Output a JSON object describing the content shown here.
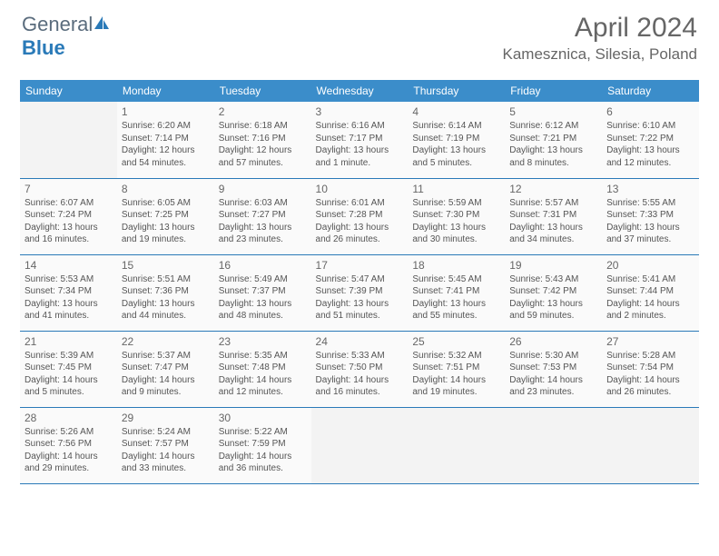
{
  "brand": {
    "part1": "General",
    "part2": "Blue"
  },
  "title": "April 2024",
  "location": "Kamesznica, Silesia, Poland",
  "colors": {
    "header_bg": "#3b8dca",
    "header_text": "#ffffff",
    "cell_border": "#2a7ab8",
    "cell_bg": "#fafafa",
    "empty_bg": "#f3f3f3",
    "text": "#555555",
    "title_color": "#666666"
  },
  "weekdays": [
    "Sunday",
    "Monday",
    "Tuesday",
    "Wednesday",
    "Thursday",
    "Friday",
    "Saturday"
  ],
  "weeks": [
    [
      null,
      {
        "n": "1",
        "sr": "Sunrise: 6:20 AM",
        "ss": "Sunset: 7:14 PM",
        "d1": "Daylight: 12 hours",
        "d2": "and 54 minutes."
      },
      {
        "n": "2",
        "sr": "Sunrise: 6:18 AM",
        "ss": "Sunset: 7:16 PM",
        "d1": "Daylight: 12 hours",
        "d2": "and 57 minutes."
      },
      {
        "n": "3",
        "sr": "Sunrise: 6:16 AM",
        "ss": "Sunset: 7:17 PM",
        "d1": "Daylight: 13 hours",
        "d2": "and 1 minute."
      },
      {
        "n": "4",
        "sr": "Sunrise: 6:14 AM",
        "ss": "Sunset: 7:19 PM",
        "d1": "Daylight: 13 hours",
        "d2": "and 5 minutes."
      },
      {
        "n": "5",
        "sr": "Sunrise: 6:12 AM",
        "ss": "Sunset: 7:21 PM",
        "d1": "Daylight: 13 hours",
        "d2": "and 8 minutes."
      },
      {
        "n": "6",
        "sr": "Sunrise: 6:10 AM",
        "ss": "Sunset: 7:22 PM",
        "d1": "Daylight: 13 hours",
        "d2": "and 12 minutes."
      }
    ],
    [
      {
        "n": "7",
        "sr": "Sunrise: 6:07 AM",
        "ss": "Sunset: 7:24 PM",
        "d1": "Daylight: 13 hours",
        "d2": "and 16 minutes."
      },
      {
        "n": "8",
        "sr": "Sunrise: 6:05 AM",
        "ss": "Sunset: 7:25 PM",
        "d1": "Daylight: 13 hours",
        "d2": "and 19 minutes."
      },
      {
        "n": "9",
        "sr": "Sunrise: 6:03 AM",
        "ss": "Sunset: 7:27 PM",
        "d1": "Daylight: 13 hours",
        "d2": "and 23 minutes."
      },
      {
        "n": "10",
        "sr": "Sunrise: 6:01 AM",
        "ss": "Sunset: 7:28 PM",
        "d1": "Daylight: 13 hours",
        "d2": "and 26 minutes."
      },
      {
        "n": "11",
        "sr": "Sunrise: 5:59 AM",
        "ss": "Sunset: 7:30 PM",
        "d1": "Daylight: 13 hours",
        "d2": "and 30 minutes."
      },
      {
        "n": "12",
        "sr": "Sunrise: 5:57 AM",
        "ss": "Sunset: 7:31 PM",
        "d1": "Daylight: 13 hours",
        "d2": "and 34 minutes."
      },
      {
        "n": "13",
        "sr": "Sunrise: 5:55 AM",
        "ss": "Sunset: 7:33 PM",
        "d1": "Daylight: 13 hours",
        "d2": "and 37 minutes."
      }
    ],
    [
      {
        "n": "14",
        "sr": "Sunrise: 5:53 AM",
        "ss": "Sunset: 7:34 PM",
        "d1": "Daylight: 13 hours",
        "d2": "and 41 minutes."
      },
      {
        "n": "15",
        "sr": "Sunrise: 5:51 AM",
        "ss": "Sunset: 7:36 PM",
        "d1": "Daylight: 13 hours",
        "d2": "and 44 minutes."
      },
      {
        "n": "16",
        "sr": "Sunrise: 5:49 AM",
        "ss": "Sunset: 7:37 PM",
        "d1": "Daylight: 13 hours",
        "d2": "and 48 minutes."
      },
      {
        "n": "17",
        "sr": "Sunrise: 5:47 AM",
        "ss": "Sunset: 7:39 PM",
        "d1": "Daylight: 13 hours",
        "d2": "and 51 minutes."
      },
      {
        "n": "18",
        "sr": "Sunrise: 5:45 AM",
        "ss": "Sunset: 7:41 PM",
        "d1": "Daylight: 13 hours",
        "d2": "and 55 minutes."
      },
      {
        "n": "19",
        "sr": "Sunrise: 5:43 AM",
        "ss": "Sunset: 7:42 PM",
        "d1": "Daylight: 13 hours",
        "d2": "and 59 minutes."
      },
      {
        "n": "20",
        "sr": "Sunrise: 5:41 AM",
        "ss": "Sunset: 7:44 PM",
        "d1": "Daylight: 14 hours",
        "d2": "and 2 minutes."
      }
    ],
    [
      {
        "n": "21",
        "sr": "Sunrise: 5:39 AM",
        "ss": "Sunset: 7:45 PM",
        "d1": "Daylight: 14 hours",
        "d2": "and 5 minutes."
      },
      {
        "n": "22",
        "sr": "Sunrise: 5:37 AM",
        "ss": "Sunset: 7:47 PM",
        "d1": "Daylight: 14 hours",
        "d2": "and 9 minutes."
      },
      {
        "n": "23",
        "sr": "Sunrise: 5:35 AM",
        "ss": "Sunset: 7:48 PM",
        "d1": "Daylight: 14 hours",
        "d2": "and 12 minutes."
      },
      {
        "n": "24",
        "sr": "Sunrise: 5:33 AM",
        "ss": "Sunset: 7:50 PM",
        "d1": "Daylight: 14 hours",
        "d2": "and 16 minutes."
      },
      {
        "n": "25",
        "sr": "Sunrise: 5:32 AM",
        "ss": "Sunset: 7:51 PM",
        "d1": "Daylight: 14 hours",
        "d2": "and 19 minutes."
      },
      {
        "n": "26",
        "sr": "Sunrise: 5:30 AM",
        "ss": "Sunset: 7:53 PM",
        "d1": "Daylight: 14 hours",
        "d2": "and 23 minutes."
      },
      {
        "n": "27",
        "sr": "Sunrise: 5:28 AM",
        "ss": "Sunset: 7:54 PM",
        "d1": "Daylight: 14 hours",
        "d2": "and 26 minutes."
      }
    ],
    [
      {
        "n": "28",
        "sr": "Sunrise: 5:26 AM",
        "ss": "Sunset: 7:56 PM",
        "d1": "Daylight: 14 hours",
        "d2": "and 29 minutes."
      },
      {
        "n": "29",
        "sr": "Sunrise: 5:24 AM",
        "ss": "Sunset: 7:57 PM",
        "d1": "Daylight: 14 hours",
        "d2": "and 33 minutes."
      },
      {
        "n": "30",
        "sr": "Sunrise: 5:22 AM",
        "ss": "Sunset: 7:59 PM",
        "d1": "Daylight: 14 hours",
        "d2": "and 36 minutes."
      },
      null,
      null,
      null,
      null
    ]
  ]
}
